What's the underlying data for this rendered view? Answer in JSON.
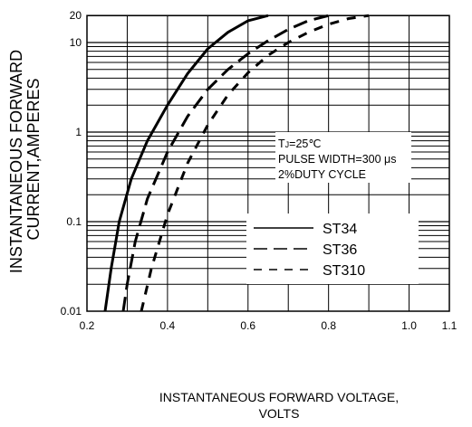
{
  "chart_data": {
    "type": "line",
    "title": "",
    "xlabel": [
      "INSTANTANEOUS FORWARD VOLTAGE,",
      "VOLTS"
    ],
    "ylabel": [
      "INSTANTANEOUS FORWARD",
      "CURRENT,AMPERES"
    ],
    "x_ticks": [
      "0.2",
      "0.4",
      "0.6",
      "0.8",
      "1.0",
      "1.1"
    ],
    "y_ticks": [
      "0.01",
      "0.1",
      "1",
      "10",
      "20"
    ],
    "xlim": [
      0.2,
      1.1
    ],
    "ylim": [
      0.01,
      20
    ],
    "y_scale": "log",
    "grid": true,
    "legend_position": "lower-right",
    "annotation": {
      "line1_main": "T",
      "line1_sub": "J",
      "line1_rest": "=25℃",
      "line2": "PULSE WIDTH=300 μs",
      "line3": "2%DUTY CYCLE"
    },
    "series": [
      {
        "name": "ST34",
        "style": "solid",
        "x": [
          0.245,
          0.26,
          0.28,
          0.31,
          0.35,
          0.4,
          0.45,
          0.5,
          0.55,
          0.6,
          0.65
        ],
        "y": [
          0.01,
          0.03,
          0.1,
          0.3,
          0.8,
          2.0,
          4.5,
          8.5,
          13.0,
          17.5,
          20
        ]
      },
      {
        "name": "ST36",
        "style": "dash",
        "x": [
          0.29,
          0.3,
          0.32,
          0.35,
          0.4,
          0.45,
          0.5,
          0.55,
          0.6,
          0.65,
          0.7,
          0.75,
          0.8
        ],
        "y": [
          0.01,
          0.02,
          0.06,
          0.18,
          0.6,
          1.5,
          3.0,
          5.0,
          7.5,
          10.5,
          14.0,
          17.5,
          20
        ]
      },
      {
        "name": "ST310",
        "style": "short-dash",
        "x": [
          0.335,
          0.36,
          0.4,
          0.45,
          0.5,
          0.55,
          0.6,
          0.65,
          0.7,
          0.75,
          0.8,
          0.85,
          0.9
        ],
        "y": [
          0.01,
          0.03,
          0.12,
          0.45,
          1.2,
          2.6,
          4.6,
          7.2,
          10.0,
          13.0,
          16.0,
          18.5,
          20
        ]
      }
    ]
  }
}
